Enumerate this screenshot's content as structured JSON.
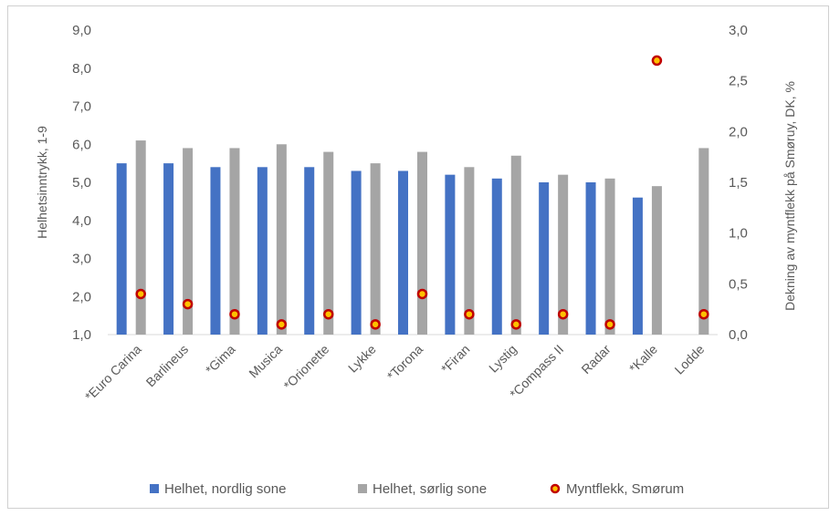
{
  "chart_data": {
    "type": "bar",
    "categories": [
      "*Euro Carina",
      "Barlineus",
      "*Gima",
      "Musica",
      "*Orionette",
      "Lykke",
      "*Torona",
      "*Firan",
      "Lystig",
      "*Compass II",
      "Radar",
      "*Kalle",
      "Lodde"
    ],
    "series": [
      {
        "name": "Helhet, nordlig sone",
        "axis": "left",
        "kind": "bar",
        "color": "#4472C4",
        "values": [
          5.5,
          5.5,
          5.4,
          5.4,
          5.4,
          5.3,
          5.3,
          5.2,
          5.1,
          5.0,
          5.0,
          4.6,
          null
        ]
      },
      {
        "name": "Helhet, sørlig sone",
        "axis": "left",
        "kind": "bar",
        "color": "#A5A5A5",
        "values": [
          6.1,
          5.9,
          5.9,
          6.0,
          5.8,
          5.5,
          5.8,
          5.4,
          5.7,
          5.2,
          5.1,
          4.9,
          5.9
        ]
      },
      {
        "name": "Myntflekk, Smørum",
        "axis": "right",
        "kind": "marker",
        "color": "#C00000",
        "fill": "#FFC000",
        "values": [
          0.4,
          0.3,
          0.2,
          0.1,
          0.2,
          0.1,
          0.4,
          0.2,
          0.1,
          0.2,
          0.1,
          2.7,
          0.2
        ]
      }
    ],
    "ylabel": "Helhetsinntrykk, 1-9",
    "y2label": "Dekning av myntflekk på Smøruy, DK, %",
    "ylim": [
      1.0,
      9.0
    ],
    "y2lim": [
      0.0,
      3.0
    ],
    "yticks": [
      "1,0",
      "2,0",
      "3,0",
      "4,0",
      "5,0",
      "6,0",
      "7,0",
      "8,0",
      "9,0"
    ],
    "y2ticks": [
      "0,0",
      "0,5",
      "1,0",
      "1,5",
      "2,0",
      "2,5",
      "3,0"
    ],
    "grid": false,
    "legend_position": "bottom"
  }
}
